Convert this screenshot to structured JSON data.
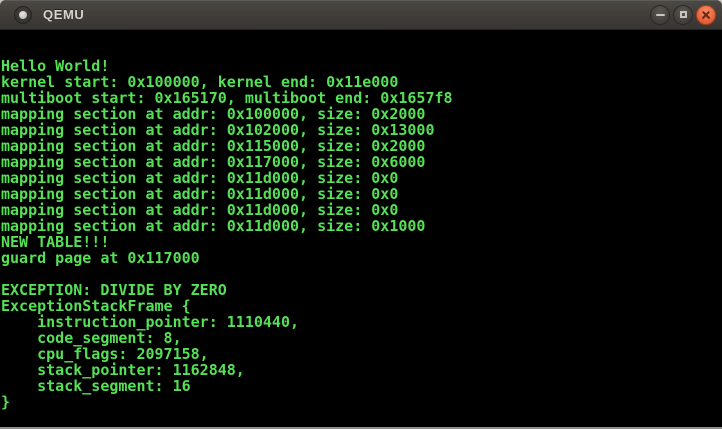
{
  "titlebar": {
    "title": "QEMU",
    "icons": {
      "window_icon": "window-menu-icon",
      "minimize": "minimize-icon",
      "maximize": "maximize-icon",
      "close": "close-icon"
    }
  },
  "colors": {
    "terminal_text": "#55e055",
    "terminal_background": "#000000",
    "close_button": "#e4633a",
    "titlebar_background": "#403e3a"
  },
  "terminal": {
    "lines": [
      "Hello World!",
      "kernel start: 0x100000, kernel end: 0x11e000",
      "multiboot start: 0x165170, multiboot end: 0x1657f8",
      "mapping section at addr: 0x100000, size: 0x2000",
      "mapping section at addr: 0x102000, size: 0x13000",
      "mapping section at addr: 0x115000, size: 0x2000",
      "mapping section at addr: 0x117000, size: 0x6000",
      "mapping section at addr: 0x11d000, size: 0x0",
      "mapping section at addr: 0x11d000, size: 0x0",
      "mapping section at addr: 0x11d000, size: 0x0",
      "mapping section at addr: 0x11d000, size: 0x1000",
      "NEW TABLE!!!",
      "guard page at 0x117000",
      "",
      "EXCEPTION: DIVIDE BY ZERO",
      "ExceptionStackFrame {",
      "    instruction_pointer: 1110440,",
      "    code_segment: 8,",
      "    cpu_flags: 2097158,",
      "    stack_pointer: 1162848,",
      "    stack_segment: 16",
      "}"
    ]
  }
}
